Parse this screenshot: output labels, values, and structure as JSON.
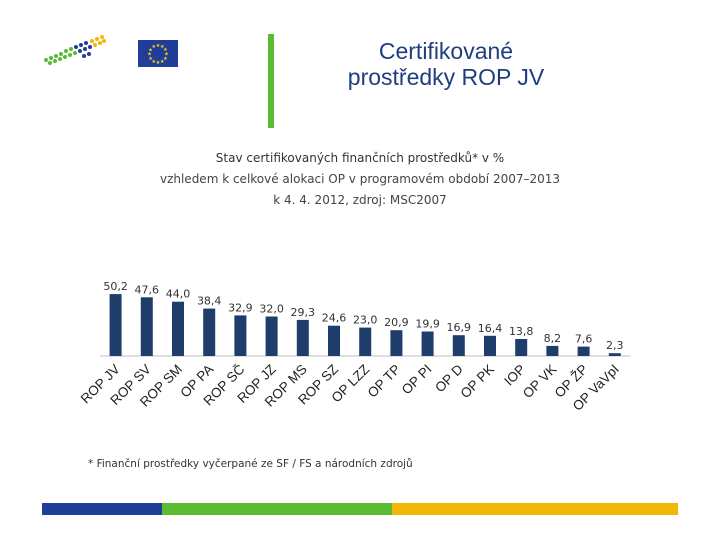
{
  "header": {
    "title_line1": "Certifikované",
    "title_line2": "prostředky ROP JV",
    "eu_flag_stars": "★"
  },
  "subtitle": {
    "line1": "Stav certifikovaných finančních prostředků* v %",
    "line2": "vzhledem k celkové alokaci OP v programovém období 2007–2013",
    "line3": "k 4. 4. 2012, zdroj: MSC2007"
  },
  "footnote": "* Finanční prostředky vyčerpané ze SF / FS a národních zdrojů",
  "colors": {
    "bar": "#1f3d6b",
    "title": "#1f3d80",
    "divider": "#5bbb32",
    "eu_blue": "#1f3d99",
    "eu_star": "#ffdd00"
  },
  "chart_data": {
    "type": "bar",
    "title": "Stav certifikovaných finančních prostředků* v %",
    "categories": [
      "ROP JV",
      "ROP SV",
      "ROP SM",
      "OP PA",
      "ROP SČ",
      "ROP JZ",
      "ROP MS",
      "ROP SZ",
      "OP LZZ",
      "OP TP",
      "OP PI",
      "OP D",
      "OP PK",
      "IOP",
      "OP VK",
      "OP ŽP",
      "OP VaVpI"
    ],
    "values": [
      50.2,
      47.6,
      44.0,
      38.4,
      32.9,
      32.0,
      29.3,
      24.6,
      23.0,
      20.9,
      19.9,
      16.9,
      16.4,
      13.8,
      8.2,
      7.6,
      2.3
    ],
    "labels": [
      "50,2",
      "47,6",
      "44,0",
      "38,4",
      "32,9",
      "32,0",
      "29,3",
      "24,6",
      "23,0",
      "20,9",
      "19,9",
      "16,9",
      "16,4",
      "13,8",
      "8,2",
      "7,6",
      "2,3"
    ],
    "xlabel": "",
    "ylabel": "",
    "ylim": [
      0,
      60
    ]
  }
}
